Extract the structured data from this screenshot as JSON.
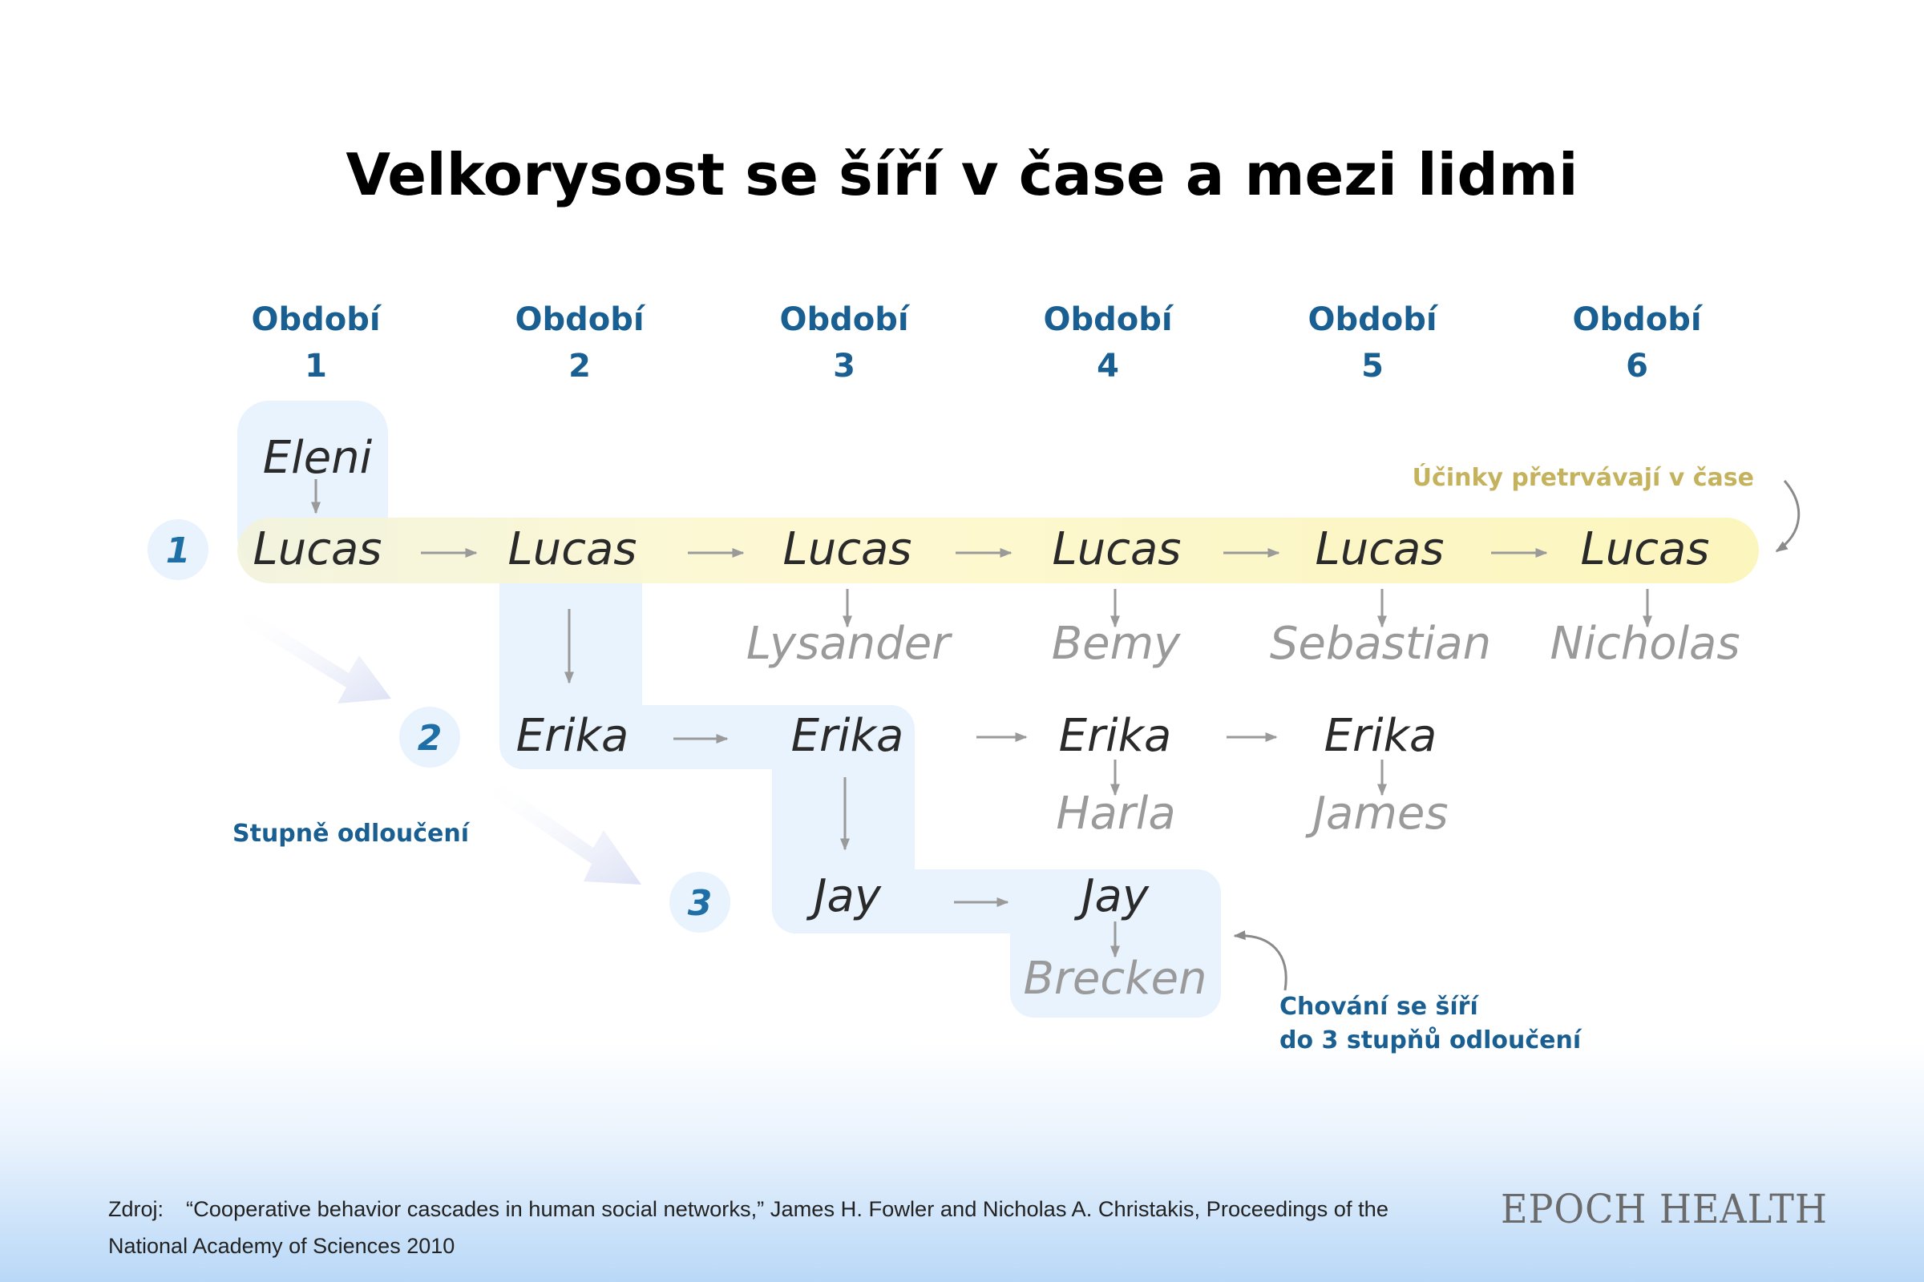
{
  "title": "Velkorysost se šíří v čase a mezi lidmi",
  "periods": [
    {
      "label": "Období",
      "num": "1"
    },
    {
      "label": "Období",
      "num": "2"
    },
    {
      "label": "Období",
      "num": "3"
    },
    {
      "label": "Období",
      "num": "4"
    },
    {
      "label": "Období",
      "num": "5"
    },
    {
      "label": "Období",
      "num": "6"
    }
  ],
  "degrees": [
    "1",
    "2",
    "3"
  ],
  "nodes": {
    "eleni": "Eleni",
    "lucas": [
      "Lucas",
      "Lucas",
      "Lucas",
      "Lucas",
      "Lucas",
      "Lucas"
    ],
    "lucas_contacts": [
      "Lysander",
      "Bemy",
      "Sebastian",
      "Nicholas"
    ],
    "erika": [
      "Erika",
      "Erika",
      "Erika",
      "Erika"
    ],
    "erika_contacts": [
      "Harla",
      "James"
    ],
    "jay": [
      "Jay",
      "Jay"
    ],
    "jay_contact": "Brecken"
  },
  "annotations": {
    "persist": "Účinky přetrvávají v čase",
    "degrees_label": "Stupně odloučení",
    "spread_line1": "Chování se šíří",
    "spread_line2": "do 3 stupňů odloučení"
  },
  "source": {
    "label": "Zdroj:",
    "line1": "“Cooperative behavior cascades in human social networks,” James H. Fowler and Nicholas A. Christakis, Proceedings of the",
    "line2": "National Academy of Sciences 2010"
  },
  "brand": "EPOCH HEALTH",
  "colors": {
    "accent_blue": "#1a5f92",
    "gold": "#c4b25d",
    "highlight_yellow": "#fbf6c8",
    "highlight_blue": "#e8f3fd"
  }
}
